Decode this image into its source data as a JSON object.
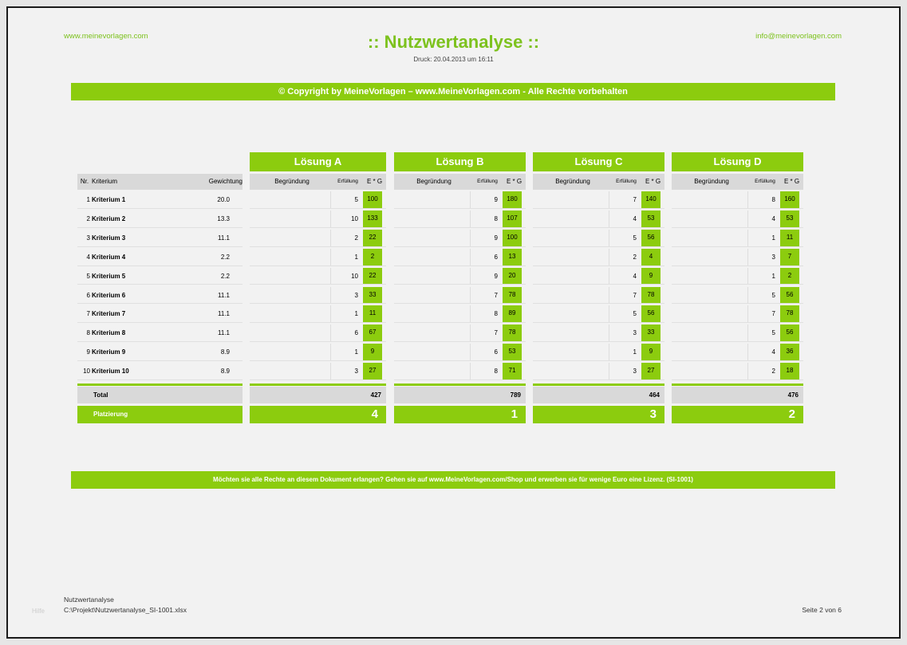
{
  "header": {
    "left_link": "www.meinevorlagen.com",
    "right_link": "info@meinevorlagen.com",
    "title": ":: Nutzwertanalyse ::",
    "print_date": "Druck: 20.04.2013 um 16:11"
  },
  "banner_top": "© Copyright by MeineVorlagen – www.MeineVorlagen.com - Alle Rechte vorbehalten",
  "banner_bottom": "Möchten sie alle Rechte an diesem Dokument erlangen? Gehen sie auf www.MeineVorlagen.com/Shop und erwerben sie für wenige Euro eine Lizenz. (SI-1001)",
  "table": {
    "col_nr": "Nr.",
    "col_kriterium": "Kriterium",
    "col_gewichtung": "Gewichtung",
    "col_begruendung": "Begründung",
    "col_erfuellung": "Erfüllung",
    "col_eg": "E * G",
    "total_label": "Total",
    "platz_label": "Platzierung",
    "criteria": [
      {
        "nr": "1",
        "name": "Kriterium 1",
        "weight": "20.0"
      },
      {
        "nr": "2",
        "name": "Kriterium 2",
        "weight": "13.3"
      },
      {
        "nr": "3",
        "name": "Kriterium 3",
        "weight": "11.1"
      },
      {
        "nr": "4",
        "name": "Kriterium 4",
        "weight": "2.2"
      },
      {
        "nr": "5",
        "name": "Kriterium 5",
        "weight": "2.2"
      },
      {
        "nr": "6",
        "name": "Kriterium 6",
        "weight": "11.1"
      },
      {
        "nr": "7",
        "name": "Kriterium 7",
        "weight": "11.1"
      },
      {
        "nr": "8",
        "name": "Kriterium 8",
        "weight": "11.1"
      },
      {
        "nr": "9",
        "name": "Kriterium 9",
        "weight": "8.9"
      },
      {
        "nr": "10",
        "name": "Kriterium 10",
        "weight": "8.9"
      }
    ],
    "solutions": [
      {
        "name": "Lösung A",
        "erf": [
          "5",
          "10",
          "2",
          "1",
          "10",
          "3",
          "1",
          "6",
          "1",
          "3"
        ],
        "eg": [
          "100",
          "133",
          "22",
          "2",
          "22",
          "33",
          "11",
          "67",
          "9",
          "27"
        ],
        "total": "427",
        "platz": "4"
      },
      {
        "name": "Lösung B",
        "erf": [
          "9",
          "8",
          "9",
          "6",
          "9",
          "7",
          "8",
          "7",
          "6",
          "8"
        ],
        "eg": [
          "180",
          "107",
          "100",
          "13",
          "20",
          "78",
          "89",
          "78",
          "53",
          "71"
        ],
        "total": "789",
        "platz": "1"
      },
      {
        "name": "Lösung C",
        "erf": [
          "7",
          "4",
          "5",
          "2",
          "4",
          "7",
          "5",
          "3",
          "1",
          "3"
        ],
        "eg": [
          "140",
          "53",
          "56",
          "4",
          "9",
          "78",
          "56",
          "33",
          "9",
          "27"
        ],
        "total": "464",
        "platz": "3"
      },
      {
        "name": "Lösung D",
        "erf": [
          "8",
          "4",
          "1",
          "3",
          "1",
          "5",
          "7",
          "5",
          "4",
          "2"
        ],
        "eg": [
          "160",
          "53",
          "11",
          "7",
          "2",
          "56",
          "78",
          "56",
          "36",
          "18"
        ],
        "total": "476",
        "platz": "2"
      }
    ]
  },
  "footer": {
    "doc_name": "Nutzwertanalyse",
    "path": "C:\\Projekt\\Nutzwertanalyse_SI-1001.xlsx",
    "page": "Seite 2 von 6",
    "faint": "Hilfe"
  }
}
